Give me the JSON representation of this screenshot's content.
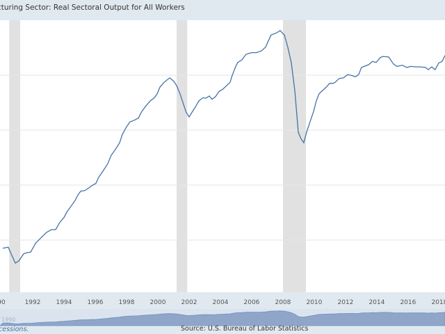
{
  "header": {
    "title": "cturing Sector: Real Sectoral Output for All Workers"
  },
  "footer": {
    "note": "cessions.",
    "source": "Source: U.S. Bureau of Labor Statistics"
  },
  "navigator": {
    "label": "1990"
  },
  "colors": {
    "line": "#4572a7",
    "recession": "#e1e1e1",
    "grid": "#e6e6e6",
    "background": "#e1e9f0",
    "navigator": "#8fa6c9"
  },
  "chart_data": {
    "type": "line",
    "title": "",
    "xlabel": "",
    "ylabel": "",
    "xlim": [
      1989.91,
      2018.36
    ],
    "ylim": [
      60.5,
      110
    ],
    "grid": true,
    "y_gridlines": [
      70,
      80,
      90,
      100
    ],
    "x_ticks": [
      "90",
      "1992",
      "1994",
      "1996",
      "1998",
      "2000",
      "2002",
      "2004",
      "2006",
      "2008",
      "2010",
      "2012",
      "2014",
      "2016",
      "2018"
    ],
    "x_tick_values": [
      1990,
      1992,
      1994,
      1996,
      1998,
      2000,
      2002,
      2004,
      2006,
      2008,
      2010,
      2012,
      2014,
      2016,
      2018
    ],
    "recessions": [
      [
        1990.5,
        1991.2
      ],
      [
        2001.2,
        2001.88
      ],
      [
        2008.0,
        2009.47
      ]
    ],
    "series": [
      {
        "x": [
          1990.09,
          1990.44,
          1990.62,
          1990.89,
          1991.11,
          1991.42,
          1991.64,
          1991.87,
          1992.18,
          1992.53,
          1992.89,
          1993.2,
          1993.47,
          1993.73,
          1994.0,
          1994.18,
          1994.44,
          1994.71,
          1994.89,
          1995.07,
          1995.33,
          1995.6,
          1995.78,
          1996.04,
          1996.22,
          1996.53,
          1996.8,
          1997.02,
          1997.29,
          1997.56,
          1997.73,
          1998.0,
          1998.22,
          1998.49,
          1998.76,
          1998.98,
          1999.24,
          1999.51,
          1999.78,
          1999.96,
          2000.13,
          2000.4,
          2000.58,
          2000.76,
          2001.02,
          2001.2,
          2001.42,
          2001.64,
          2001.82,
          2002.0,
          2002.22,
          2002.44,
          2002.62,
          2002.89,
          2003.07,
          2003.29,
          2003.47,
          2003.69,
          2003.91,
          2004.18,
          2004.4,
          2004.62,
          2004.76,
          2004.98,
          2005.11,
          2005.38,
          2005.64,
          2006.0,
          2006.31,
          2006.62,
          2006.89,
          2007.24,
          2007.6,
          2007.82,
          2008.09,
          2008.31,
          2008.53,
          2008.76,
          2008.98,
          2009.16,
          2009.33,
          2009.51,
          2009.73,
          2009.96,
          2010.13,
          2010.31,
          2010.53,
          2010.76,
          2010.98,
          2011.2,
          2011.33,
          2011.6,
          2011.87,
          2012.13,
          2012.44,
          2012.62,
          2012.84,
          2013.02,
          2013.2,
          2013.47,
          2013.73,
          2013.96,
          2014.22,
          2014.4,
          2014.76,
          2015.07,
          2015.29,
          2015.64,
          2015.91,
          2016.18,
          2016.53,
          2016.76,
          2017.11,
          2017.29,
          2017.51,
          2017.73,
          2017.96,
          2018.18,
          2018.36
        ],
        "y": [
          68.5,
          68.7,
          67.5,
          65.8,
          66.2,
          67.5,
          67.7,
          67.8,
          69.4,
          70.4,
          71.4,
          71.9,
          71.9,
          73.2,
          74.1,
          75.1,
          76.1,
          77.2,
          78.2,
          78.9,
          79.0,
          79.5,
          79.9,
          80.3,
          81.4,
          82.7,
          83.9,
          85.4,
          86.5,
          87.7,
          89.2,
          90.6,
          91.5,
          91.8,
          92.2,
          93.4,
          94.4,
          95.3,
          95.9,
          96.6,
          97.8,
          98.7,
          99.1,
          99.5,
          98.9,
          98.1,
          96.6,
          94.7,
          93.2,
          92.4,
          93.4,
          94.4,
          95.3,
          95.9,
          95.8,
          96.2,
          95.6,
          96.1,
          97.0,
          97.5,
          98.1,
          98.7,
          100.0,
          101.6,
          102.3,
          102.8,
          103.8,
          104.1,
          104.1,
          104.4,
          105.1,
          107.3,
          107.7,
          108.1,
          107.3,
          105.1,
          102.3,
          97.2,
          89.6,
          88.4,
          87.7,
          89.6,
          91.5,
          93.4,
          95.3,
          96.6,
          97.2,
          97.8,
          98.5,
          98.5,
          98.7,
          99.4,
          99.5,
          100.1,
          99.9,
          99.7,
          100.1,
          101.4,
          101.6,
          101.9,
          102.5,
          102.3,
          103.2,
          103.4,
          103.3,
          102.0,
          101.6,
          101.8,
          101.4,
          101.6,
          101.5,
          101.5,
          101.4,
          101.0,
          101.5,
          101.0,
          102.2,
          102.5,
          103.6
        ]
      }
    ]
  }
}
